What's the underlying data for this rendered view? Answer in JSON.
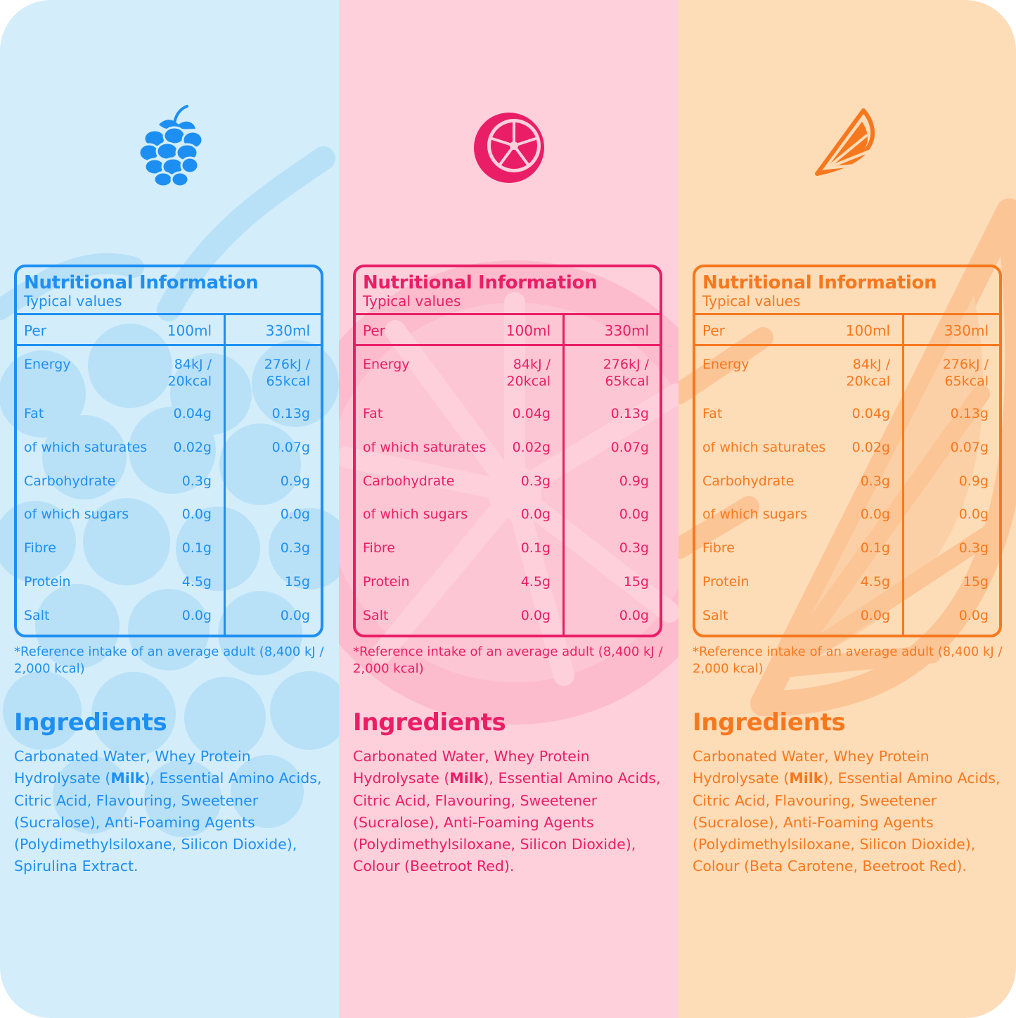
{
  "colors": {
    "raspberry": "#1e8ff2",
    "raspberry_bg": "#d3edfa",
    "grapefruit": "#ea1e66",
    "grapefruit_bg": "#fdd0dc",
    "orange": "#f6781e",
    "orange_bg": "#fddcb8"
  },
  "panels": [
    {
      "icon": "raspberry-icon",
      "table": {
        "title": "Nutritional Information",
        "subtitle": "Typical values",
        "col_per": "Per",
        "col_100": "100ml",
        "col_330": "330ml",
        "rows": [
          {
            "label": "Energy",
            "v100": "84kJ /\n20kcal",
            "v330": "276kJ /\n65kcal"
          },
          {
            "label": "Fat",
            "v100": "0.04g",
            "v330": "0.13g"
          },
          {
            "label": "of which saturates",
            "v100": "0.02g",
            "v330": "0.07g"
          },
          {
            "label": "Carbohydrate",
            "v100": "0.3g",
            "v330": "0.9g"
          },
          {
            "label": "of which sugars",
            "v100": "0.0g",
            "v330": "0.0g"
          },
          {
            "label": "Fibre",
            "v100": "0.1g",
            "v330": "0.3g"
          },
          {
            "label": "Protein",
            "v100": "4.5g",
            "v330": "15g"
          },
          {
            "label": "Salt",
            "v100": "0.0g",
            "v330": "0.0g"
          }
        ]
      },
      "footnote": "*Reference intake of an average adult (8,400 kJ / 2,000 kcal)",
      "ingredients_heading": "Ingredients",
      "ingredients_pre": "Carbonated Water, Whey Protein Hydrolysate (",
      "ingredients_allergen": "Milk",
      "ingredients_post": "), Essential Amino Acids, Citric Acid, Flavouring, Sweetener (Sucralose), Anti-Foaming Agents (Polydimethylsiloxane, Silicon Dioxide), Spirulina Extract."
    },
    {
      "icon": "grapefruit-icon",
      "table": {
        "title": "Nutritional Information",
        "subtitle": "Typical values",
        "col_per": "Per",
        "col_100": "100ml",
        "col_330": "330ml",
        "rows": [
          {
            "label": "Energy",
            "v100": "84kJ /\n20kcal",
            "v330": "276kJ /\n65kcal"
          },
          {
            "label": "Fat",
            "v100": "0.04g",
            "v330": "0.13g"
          },
          {
            "label": "of which saturates",
            "v100": "0.02g",
            "v330": "0.07g"
          },
          {
            "label": "Carbohydrate",
            "v100": "0.3g",
            "v330": "0.9g"
          },
          {
            "label": "of which sugars",
            "v100": "0.0g",
            "v330": "0.0g"
          },
          {
            "label": "Fibre",
            "v100": "0.1g",
            "v330": "0.3g"
          },
          {
            "label": "Protein",
            "v100": "4.5g",
            "v330": "15g"
          },
          {
            "label": "Salt",
            "v100": "0.0g",
            "v330": "0.0g"
          }
        ]
      },
      "footnote": "*Reference intake of an average adult (8,400 kJ / 2,000 kcal)",
      "ingredients_heading": "Ingredients",
      "ingredients_pre": "Carbonated Water, Whey Protein Hydrolysate (",
      "ingredients_allergen": "Milk",
      "ingredients_post": "), Essential Amino Acids, Citric Acid, Flavouring, Sweetener (Sucralose), Anti-Foaming Agents (Polydimethylsiloxane, Silicon Dioxide), Colour (Beetroot Red)."
    },
    {
      "icon": "orange-slice-icon",
      "table": {
        "title": "Nutritional Information",
        "subtitle": "Typical values",
        "col_per": "Per",
        "col_100": "100ml",
        "col_330": "330ml",
        "rows": [
          {
            "label": "Energy",
            "v100": "84kJ /\n20kcal",
            "v330": "276kJ /\n65kcal"
          },
          {
            "label": "Fat",
            "v100": "0.04g",
            "v330": "0.13g"
          },
          {
            "label": "of which saturates",
            "v100": "0.02g",
            "v330": "0.07g"
          },
          {
            "label": "Carbohydrate",
            "v100": "0.3g",
            "v330": "0.9g"
          },
          {
            "label": "of which sugars",
            "v100": "0.0g",
            "v330": "0.0g"
          },
          {
            "label": "Fibre",
            "v100": "0.1g",
            "v330": "0.3g"
          },
          {
            "label": "Protein",
            "v100": "4.5g",
            "v330": "15g"
          },
          {
            "label": "Salt",
            "v100": "0.0g",
            "v330": "0.0g"
          }
        ]
      },
      "footnote": "*Reference intake of an average adult (8,400 kJ / 2,000 kcal)",
      "ingredients_heading": "Ingredients",
      "ingredients_pre": "Carbonated Water, Whey Protein Hydrolysate (",
      "ingredients_allergen": "Milk",
      "ingredients_post": "), Essential Amino Acids, Citric Acid, Flavouring, Sweetener (Sucralose), Anti-Foaming Agents (Polydimethylsiloxane, Silicon Dioxide), Colour (Beta Carotene, Beetroot Red)."
    }
  ]
}
